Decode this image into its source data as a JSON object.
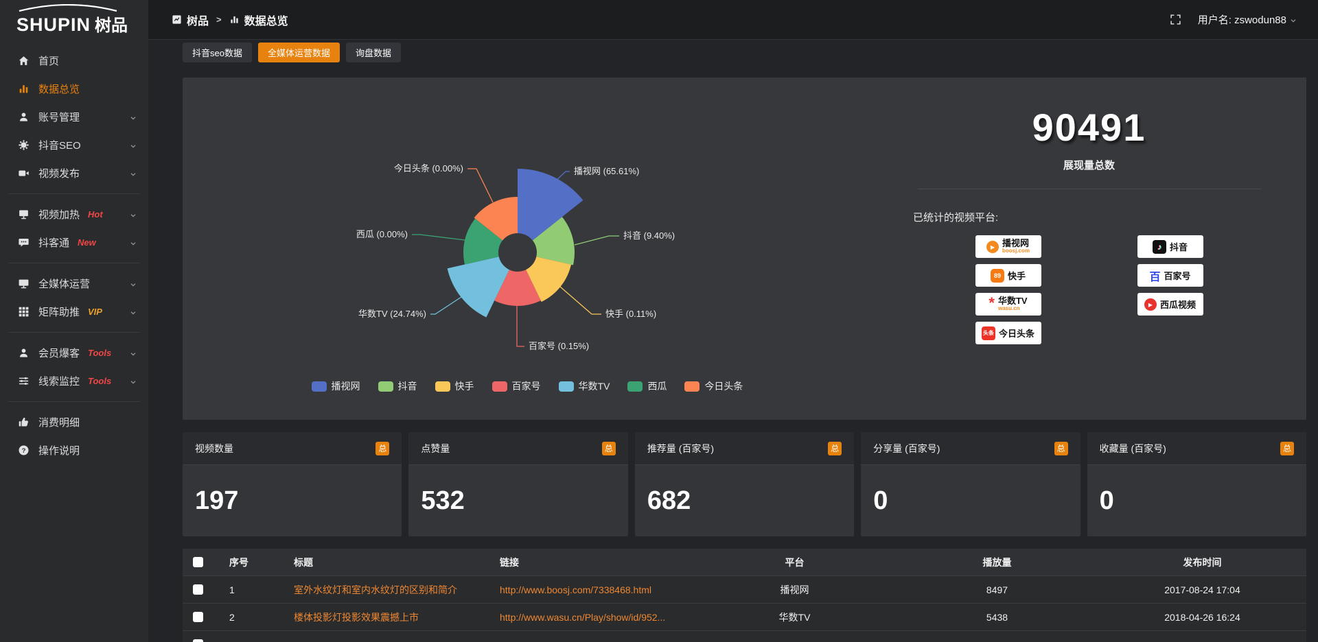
{
  "logo": {
    "en": "SHUPIN",
    "cn": "树品"
  },
  "topbar": {
    "breadcrumb": [
      {
        "label": "树品",
        "icon": "app-icon"
      },
      {
        "label": "数据总览",
        "icon": "bar-chart-icon"
      }
    ],
    "separator": ">",
    "username": "用户名: zswodun88"
  },
  "sidebar": {
    "items": [
      {
        "label": "首页",
        "icon": "home-icon"
      },
      {
        "label": "数据总览",
        "icon": "bar-chart-icon",
        "active": true
      },
      {
        "label": "账号管理",
        "icon": "user-icon",
        "chevron": true
      },
      {
        "label": "抖音SEO",
        "icon": "gear-icon",
        "chevron": true
      },
      {
        "label": "视频发布",
        "icon": "video-camera-icon",
        "chevron": true
      },
      {
        "divider": true
      },
      {
        "label": "视频加热",
        "icon": "screen-icon",
        "badge": "Hot",
        "badge_color": "#f04646",
        "chevron": true
      },
      {
        "label": "抖客通",
        "icon": "chat-icon",
        "badge": "New",
        "badge_color": "#f04646",
        "chevron": true
      },
      {
        "divider": true
      },
      {
        "label": "全媒体运营",
        "icon": "monitor-icon",
        "chevron": true
      },
      {
        "label": "矩阵助推",
        "icon": "grid-icon",
        "badge": "VIP",
        "badge_color": "#efa12c",
        "chevron": true
      },
      {
        "divider": true
      },
      {
        "label": "会员爆客",
        "icon": "user-icon",
        "badge": "Tools",
        "badge_color": "#f04646",
        "chevron": true
      },
      {
        "label": "线索监控",
        "icon": "sliders-icon",
        "badge": "Tools",
        "badge_color": "#f04646",
        "chevron": true
      },
      {
        "divider": true
      },
      {
        "label": "消费明细",
        "icon": "thumbs-up-icon"
      },
      {
        "label": "操作说明",
        "icon": "question-circle-icon"
      }
    ]
  },
  "tabs": [
    {
      "label": "抖音seo数据"
    },
    {
      "label": "全媒体运营数据",
      "active": true
    },
    {
      "label": "询盘数据"
    }
  ],
  "chart_data": {
    "type": "pie",
    "subtype": "nightingale-rose",
    "title": "",
    "unit": "%",
    "series": [
      {
        "name": "播视网",
        "value": 65.61
      },
      {
        "name": "抖音",
        "value": 9.4
      },
      {
        "name": "快手",
        "value": 0.11
      },
      {
        "name": "百家号",
        "value": 0.15
      },
      {
        "name": "华数TV",
        "value": 24.74
      },
      {
        "name": "西瓜",
        "value": 0.0
      },
      {
        "name": "今日头条",
        "value": 0.0
      }
    ],
    "colors": [
      "#5470c6",
      "#91cc75",
      "#fac858",
      "#ee6666",
      "#73c0de",
      "#3ba272",
      "#fc8452"
    ],
    "legend": [
      "播视网",
      "抖音",
      "快手",
      "百家号",
      "华数TV",
      "西瓜",
      "今日头条"
    ],
    "legend_position": "bottom"
  },
  "summary": {
    "total_value": "90491",
    "total_label": "展现量总数",
    "platforms_title": "已统计的视频平台:",
    "platforms": [
      {
        "name": "播视网",
        "sub": "boosj.com",
        "icon": "boosj-logo"
      },
      {
        "name": "抖音",
        "icon": "douyin-logo"
      },
      {
        "name": "快手",
        "icon": "kuaishou-logo"
      },
      {
        "name": "百家号",
        "icon": "baijiahao-logo"
      },
      {
        "name": "华数TV",
        "sub": "wasu.cn",
        "icon": "wasu-logo"
      },
      {
        "name": "西瓜视频",
        "icon": "xigua-logo"
      },
      {
        "name": "今日头条",
        "icon": "toutiao-logo"
      }
    ]
  },
  "stat_cards": [
    {
      "label": "视频数量",
      "badge": "总",
      "value": "197"
    },
    {
      "label": "点赞量",
      "badge": "总",
      "value": "532"
    },
    {
      "label": "推荐量 (百家号)",
      "badge": "总",
      "value": "682"
    },
    {
      "label": "分享量 (百家号)",
      "badge": "总",
      "value": "0"
    },
    {
      "label": "收藏量 (百家号)",
      "badge": "总",
      "value": "0"
    }
  ],
  "table": {
    "headers": [
      "序号",
      "标题",
      "链接",
      "平台",
      "播放量",
      "发布时间"
    ],
    "rows": [
      {
        "index": "1",
        "title": "室外水纹灯和室内水纹灯的区别和简介",
        "link": "http://www.boosj.com/7338468.html",
        "platform": "播视网",
        "views": "8497",
        "published": "2017-08-24 17:04"
      },
      {
        "index": "2",
        "title": "楼体投影灯投影效果震撼上市",
        "link": "http://www.wasu.cn/Play/show/id/952...",
        "platform": "华数TV",
        "views": "5438",
        "published": "2018-04-26 16:24"
      }
    ]
  }
}
